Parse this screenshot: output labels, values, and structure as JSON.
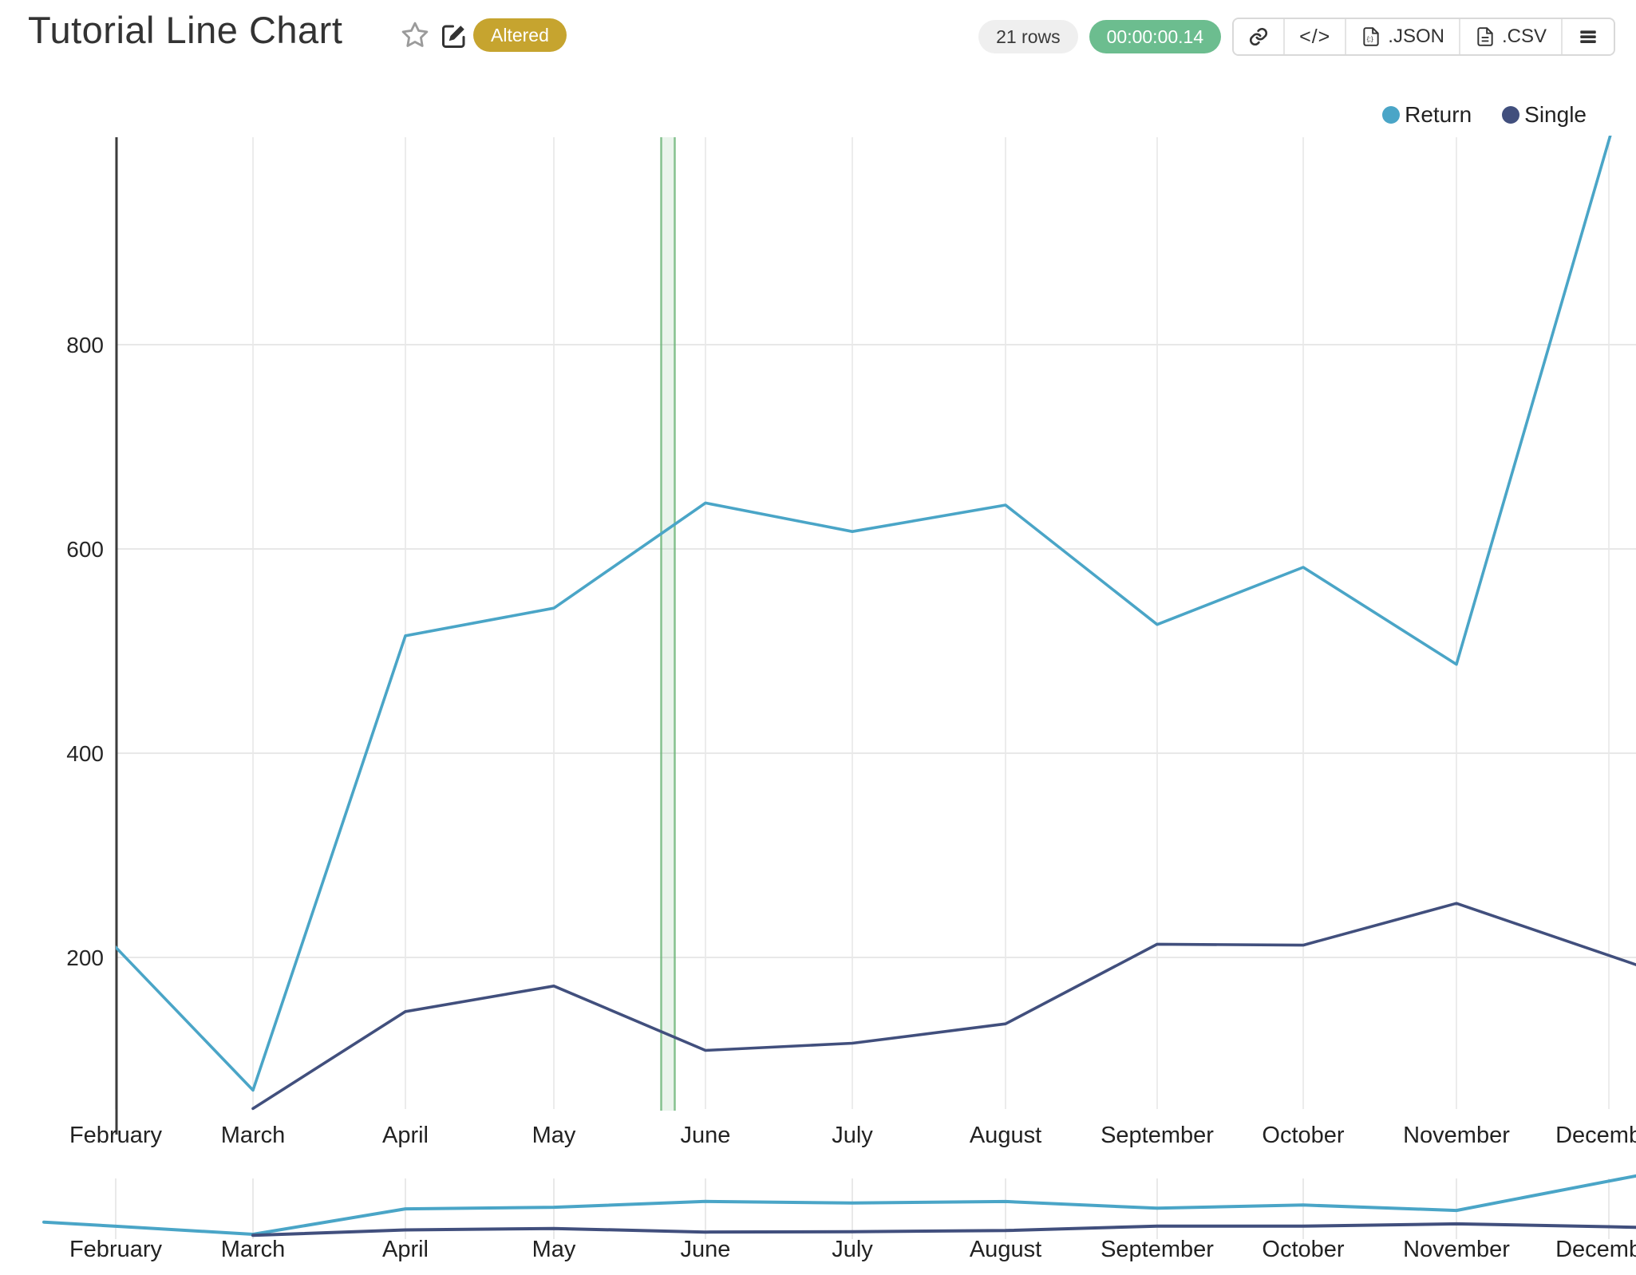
{
  "header": {
    "title": "Tutorial Line Chart",
    "altered_badge": "Altered",
    "rows_badge": "21 rows",
    "timer_badge": "00:00:00.14",
    "embed_code_label": "</>",
    "export_json_label": ".JSON",
    "export_csv_label": ".CSV"
  },
  "chart_data": {
    "type": "line",
    "categories": [
      "February",
      "March",
      "April",
      "May",
      "June",
      "July",
      "August",
      "September",
      "October",
      "November",
      "December"
    ],
    "series": [
      {
        "name": "Return",
        "color": "#4aa5c7",
        "values": [
          210,
          70,
          515,
          542,
          645,
          617,
          643,
          526,
          582,
          487,
          1000
        ]
      },
      {
        "name": "Single",
        "color": "#414f7d",
        "values": [
          null,
          52,
          147,
          172,
          109,
          116,
          135,
          213,
          212,
          253,
          202
        ]
      }
    ],
    "yticks": [
      200,
      400,
      600,
      800
    ],
    "ylim": [
      50,
      1005
    ],
    "grid": true,
    "legend_position": "top-right",
    "highlight_band": {
      "between": [
        "May",
        "June"
      ],
      "fraction": 0.75,
      "color": "#69b376"
    },
    "range_slider": true
  }
}
